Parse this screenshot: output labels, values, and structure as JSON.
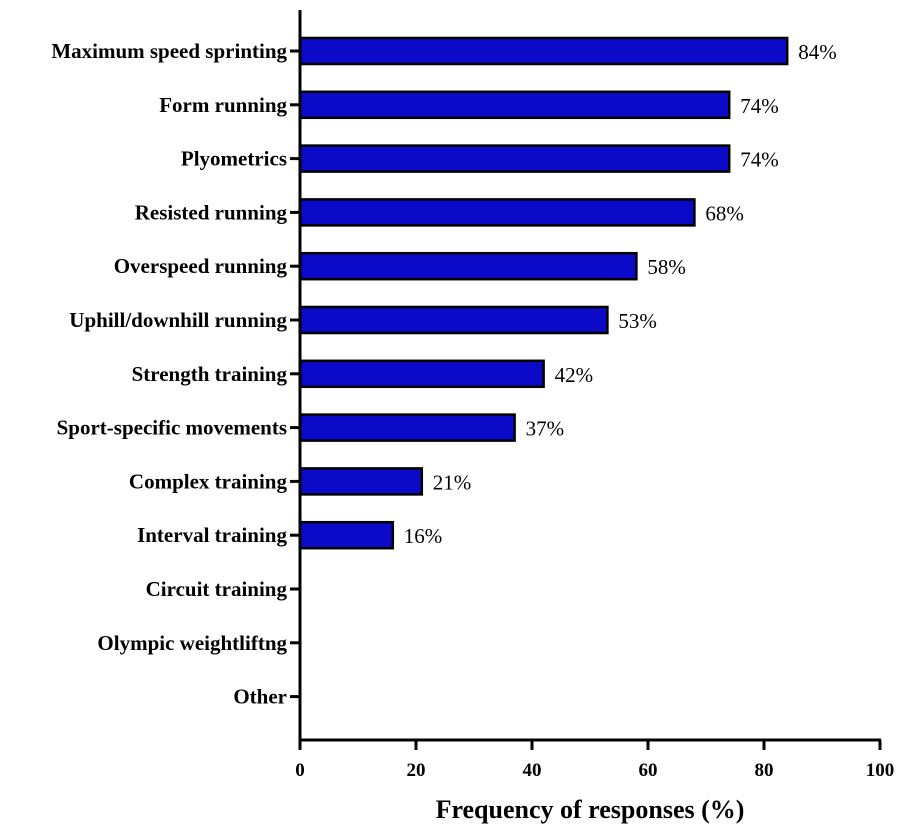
{
  "chart_data": {
    "type": "bar",
    "orientation": "horizontal",
    "categories": [
      "Maximum speed sprinting",
      "Form running",
      "Plyometrics",
      "Resisted running",
      "Overspeed running",
      "Uphill/downhill running",
      "Strength training",
      "Sport-specific movements",
      "Complex training",
      "Interval training",
      "Circuit training",
      "Olympic weightliftng",
      "Other"
    ],
    "values": [
      84,
      74,
      74,
      68,
      58,
      53,
      42,
      37,
      21,
      16,
      0,
      0,
      0
    ],
    "data_labels": [
      "84%",
      "74%",
      "74%",
      "68%",
      "58%",
      "53%",
      "42%",
      "37%",
      "21%",
      "16%",
      "",
      "",
      ""
    ],
    "xlabel": "Frequency of responses (%)",
    "ylabel": "",
    "xlim": [
      0,
      100
    ],
    "xticks": [
      0,
      20,
      40,
      60,
      80,
      100
    ],
    "grid": false,
    "legend": "none",
    "colors": {
      "bar_fill": "#0a0ac8",
      "bar_stroke": "#000000"
    }
  }
}
